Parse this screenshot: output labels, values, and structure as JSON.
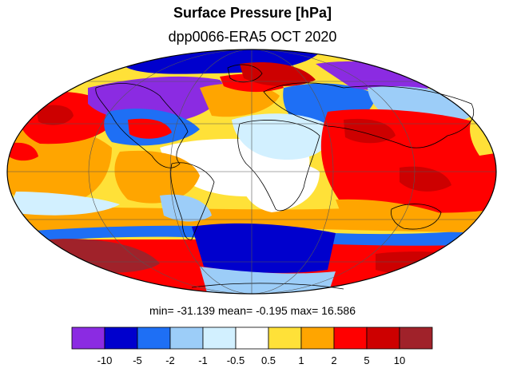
{
  "header": {
    "title": "Surface Pressure [hPa]",
    "subtitle": "dpp0066-ERA5  OCT 2020"
  },
  "stats": {
    "text": "min= -31.139   mean=  -0.195  max=  16.586"
  },
  "colorbar": {
    "boundaries": [
      "-10",
      "-5",
      "-2",
      "-1",
      "-0.5",
      "0.5",
      "1",
      "2",
      "5",
      "10"
    ],
    "colors": [
      "#8b2be2",
      "#0000cd",
      "#1e6ff5",
      "#9ccdf8",
      "#d2f0ff",
      "#ffffff",
      "#ffe138",
      "#ffa500",
      "#ff0000",
      "#cd0000",
      "#a0222a"
    ]
  },
  "map": {
    "projection": "Mollweide",
    "colors": {
      "violet": "#8b2be2",
      "deep_blue": "#0000cd",
      "blue": "#1e6ff5",
      "light_blue": "#9ccdf8",
      "pale_blue": "#d2f0ff",
      "white": "#ffffff",
      "yellow": "#ffe138",
      "orange": "#ffa500",
      "red": "#ff0000",
      "dark_red": "#cd0000",
      "brown": "#a0222a"
    }
  }
}
